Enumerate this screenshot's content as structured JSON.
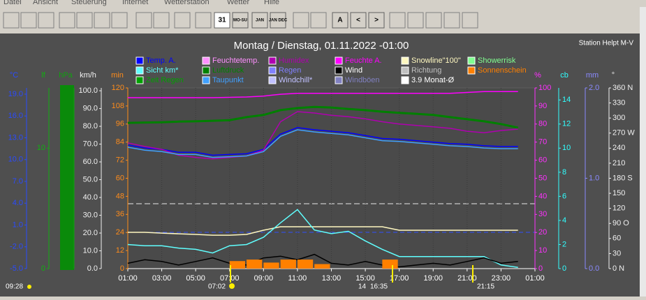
{
  "menu": [
    "Datei",
    "Ansicht",
    "Steuerung",
    "Internet",
    "Wetterstation",
    "Wetter",
    "Hilfe"
  ],
  "toolbar": [
    "31",
    "MO-SU",
    "JAN",
    "JAN DEC",
    "A",
    "<",
    ">"
  ],
  "chart_data": {
    "type": "line",
    "title": "Montag / Dienstag, 01.11.2022  -01:00",
    "station": "Station Helpt M-V",
    "x": [
      1,
      2,
      3,
      4,
      5,
      6,
      7,
      8,
      9,
      10,
      11,
      12,
      13,
      14,
      15,
      16,
      17,
      18,
      19,
      20,
      21,
      22,
      23,
      24
    ],
    "xlim": [
      1,
      25
    ],
    "xticks": [
      {
        "value": 1,
        "label": "01:00"
      },
      {
        "value": 3,
        "label": "03:00"
      },
      {
        "value": 5,
        "label": "05:00"
      },
      {
        "value": 7,
        "label": "07:00"
      },
      {
        "value": 9,
        "label": "09:00"
      },
      {
        "value": 11,
        "label": "11:00"
      },
      {
        "value": 13,
        "label": "13:00"
      },
      {
        "value": 15,
        "label": "15:00"
      },
      {
        "value": 17,
        "label": "17:00"
      },
      {
        "value": 19,
        "label": "19:00"
      },
      {
        "value": 21,
        "label": "21:00"
      },
      {
        "value": 23,
        "label": "23:00"
      },
      {
        "value": 25,
        "label": "01:00"
      }
    ],
    "grid": true,
    "axes": {
      "temp": {
        "label": "°C",
        "color": "#2a4bff",
        "side": "left",
        "lim": [
          -5,
          19.86
        ],
        "ticks": [
          {
            "value": 19,
            "label": "19.0"
          },
          {
            "value": 16,
            "label": "16.0"
          },
          {
            "value": 13,
            "label": "13.0"
          },
          {
            "value": 10,
            "label": "10.0"
          },
          {
            "value": 7,
            "label": "7.0"
          },
          {
            "value": 4,
            "label": "4.0"
          },
          {
            "value": 1,
            "label": "1.0"
          },
          {
            "value": -2,
            "label": "-2.0"
          },
          {
            "value": -5,
            "label": "-5.0"
          }
        ]
      },
      "lf": {
        "label": "lf",
        "color": "#10b010",
        "side": "left",
        "lim": [
          0,
          15
        ],
        "ticks": [
          10,
          0
        ]
      },
      "hpa": {
        "label": "hPa",
        "color": "#10a010",
        "side": "left",
        "lim": [
          980,
          1040
        ],
        "ticks": []
      },
      "kmh": {
        "label": "km/h",
        "color": "#f0f0f0",
        "side": "left",
        "lim": [
          0,
          101.6
        ],
        "ticks": [
          {
            "value": 100,
            "label": "100.0"
          },
          {
            "value": 90,
            "label": "90.0"
          },
          {
            "value": 80,
            "label": "80.0"
          },
          {
            "value": 70,
            "label": "70.0"
          },
          {
            "value": 60,
            "label": "60.0"
          },
          {
            "value": 50,
            "label": "50.0"
          },
          {
            "value": 40,
            "label": "40.0"
          },
          {
            "value": 30,
            "label": "30.0"
          },
          {
            "value": 20,
            "label": "20.0"
          },
          {
            "value": 10,
            "label": "10.0"
          },
          {
            "value": 0,
            "label": "0.0"
          }
        ]
      },
      "min": {
        "label": "min",
        "color": "#ff8c1a",
        "side": "left",
        "lim": [
          0,
          120
        ],
        "ticks": [
          120,
          108,
          96,
          84,
          72,
          60,
          48,
          36,
          24,
          12,
          0
        ]
      },
      "pct": {
        "label": "%",
        "color": "#ff30ff",
        "side": "right",
        "lim": [
          0,
          100
        ],
        "ticks": [
          100,
          90,
          80,
          70,
          60,
          50,
          40,
          30,
          20,
          10,
          0
        ]
      },
      "cb": {
        "label": "cb",
        "color": "#30ffff",
        "side": "right",
        "lim": [
          0,
          15
        ],
        "ticks": [
          14,
          12,
          10,
          8,
          6,
          4,
          2,
          0
        ]
      },
      "mm": {
        "label": "mm",
        "color": "#8a8aff",
        "side": "right",
        "lim": [
          0,
          2
        ],
        "ticks": [
          {
            "value": 2,
            "label": "2.0"
          },
          {
            "value": 1,
            "label": "1.0"
          },
          {
            "value": 0,
            "label": "0.0"
          }
        ]
      },
      "deg": {
        "label": "°",
        "color": "#f0f0f0",
        "side": "right",
        "lim": [
          0,
          360
        ],
        "ticks": [
          {
            "value": 360,
            "label": "360 N"
          },
          330,
          300,
          {
            "value": 270,
            "label": "270 W"
          },
          240,
          210,
          {
            "value": 180,
            "label": "180 S"
          },
          150,
          120,
          {
            "value": 90,
            "label": "90  O"
          },
          60,
          30,
          {
            "value": 0,
            "label": "0  N"
          }
        ]
      }
    },
    "series": [
      {
        "name": "Temp. A.",
        "color": "#0000ff",
        "axis": "temp",
        "values": [
          12.0,
          11.6,
          11.4,
          11.0,
          11.0,
          10.6,
          10.7,
          10.8,
          11.4,
          13.5,
          14.4,
          14.1,
          13.9,
          13.7,
          13.3,
          12.9,
          12.8,
          12.6,
          12.4,
          12.2,
          12.1,
          11.9,
          11.8,
          11.8
        ]
      },
      {
        "name": "Feuchtetemp.",
        "color": "#ff90ff"
      },
      {
        "name": "Humidex",
        "color": "#b000b0",
        "axis": "temp",
        "values": [
          12.3,
          11.8,
          11.4,
          10.6,
          10.3,
          10.1,
          10.3,
          10.5,
          11.3,
          15.2,
          16.6,
          16.4,
          16.1,
          15.9,
          15.6,
          15.2,
          14.9,
          14.7,
          14.5,
          14.3,
          13.9,
          13.7,
          14.0,
          14.2
        ]
      },
      {
        "name": "Feuchte A.",
        "color": "#ff00ff",
        "axis": "pct",
        "values": [
          94.6,
          94.6,
          94.6,
          94.6,
          94.6,
          94.6,
          94.8,
          95,
          95.5,
          96.5,
          97,
          97,
          97,
          97,
          97,
          97,
          97,
          97,
          97,
          97,
          97.5,
          98,
          98,
          98
        ]
      },
      {
        "name": "Snowline\"100\"",
        "color": "#fff8c0",
        "axis": "min",
        "values": [
          24.1,
          24.1,
          23.6,
          23.1,
          22.7,
          22.2,
          22.2,
          22.7,
          25.5,
          27.8,
          27.8,
          27.8,
          27.8,
          27.8,
          27.8,
          27.8,
          25.5,
          25.5,
          25.5,
          25.5,
          25.5,
          25.5,
          25.5,
          25.5
        ]
      },
      {
        "name": "Showerrisk",
        "color": "#80ff90"
      },
      {
        "name": "Sicht km*",
        "color": "#60ffff",
        "axis": "cb",
        "values": [
          2.0,
          1.9,
          1.9,
          1.7,
          1.6,
          1.3,
          1.9,
          2.0,
          2.6,
          3.8,
          4.9,
          3.2,
          2.9,
          3.1,
          2.3,
          1.6,
          1.0,
          1.0,
          1.0,
          1.0,
          1.0,
          1.0,
          0.3,
          0.1
        ]
      },
      {
        "name": "Luftdruck",
        "color": "#008000",
        "axis": "hpa",
        "values": [
          1028.4,
          1028.5,
          1028.6,
          1028.8,
          1028.9,
          1029.1,
          1029.3,
          1030.3,
          1031.0,
          1032.6,
          1033.3,
          1033.7,
          1033.5,
          1033.0,
          1032.6,
          1032.1,
          1031.7,
          1031.4,
          1031.0,
          1030.3,
          1029.6,
          1028.9,
          1028.0,
          1026.8
        ]
      },
      {
        "name": "Regen",
        "color": "#8080ff"
      },
      {
        "name": "Wind",
        "color": "#000000",
        "axis": "kmh",
        "values": [
          3,
          5,
          4,
          2,
          4,
          6,
          3,
          2,
          6,
          7,
          5,
          8,
          3,
          2,
          4,
          2,
          1,
          2,
          3,
          2,
          4,
          6,
          3,
          4
        ]
      },
      {
        "name": "Richtung",
        "color": "#c0c0c0"
      },
      {
        "name": "Sonnenschein",
        "color": "#ff8000",
        "axis": "min",
        "style": "bar",
        "values": [
          0,
          0,
          0,
          0,
          0,
          0,
          5,
          6,
          4,
          6,
          6,
          3,
          0,
          0,
          0,
          6,
          0,
          0,
          0,
          0,
          0,
          0,
          0,
          0
        ]
      },
      {
        "name": "Zeit Regen",
        "color": "#00a000"
      },
      {
        "name": "Taupunkt",
        "color": "#40a0ff",
        "axis": "temp",
        "values": [
          11.7,
          11.3,
          11.1,
          10.7,
          10.7,
          10.3,
          10.4,
          10.5,
          11.1,
          13.2,
          14.1,
          13.8,
          13.6,
          13.4,
          13.0,
          12.6,
          12.5,
          12.3,
          12.1,
          11.9,
          11.8,
          11.6,
          11.5,
          11.5
        ]
      },
      {
        "name": "Windchill*",
        "color": "#c0c0ff"
      },
      {
        "name": "Windböen",
        "color": "#8080c0"
      },
      {
        "name": "3.9 Monat-Ø",
        "color": "#ffffff"
      }
    ],
    "footer": [
      "09:28",
      "07:02",
      "14",
      "16:35",
      "21:15"
    ]
  }
}
